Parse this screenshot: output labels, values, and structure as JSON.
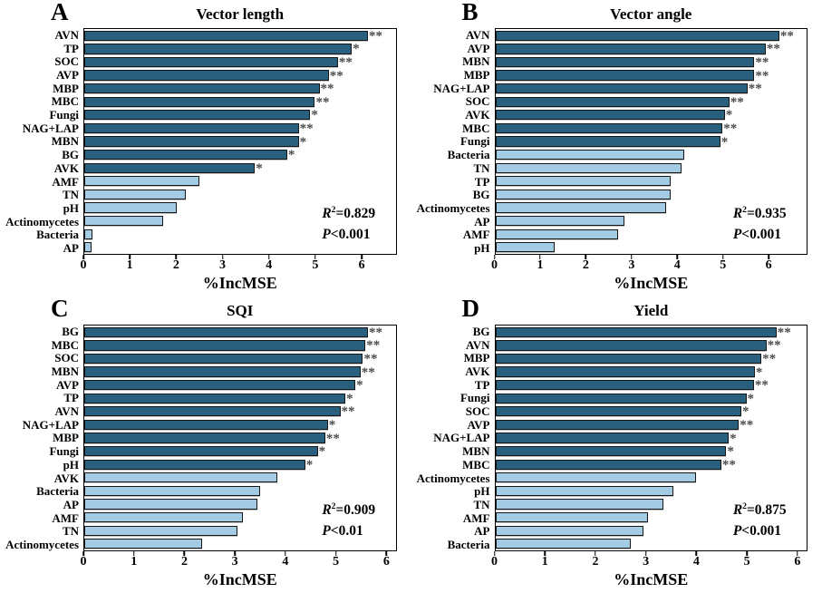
{
  "figure": {
    "background": "#ffffff",
    "colors": {
      "dark_bar": "#28607E",
      "light_bar": "#A3CCE4",
      "bar_border": "#161616",
      "sig_color": "#4A4A4A",
      "text": "#000000"
    }
  },
  "chart_data": [
    {
      "id": "A",
      "type": "bar",
      "orientation": "horizontal",
      "title": "Vector length",
      "xlabel": "%IncMSE",
      "xlim": [
        0,
        6.75
      ],
      "xticks": [
        0,
        1,
        2,
        3,
        4,
        5,
        6
      ],
      "grid": false,
      "stats": {
        "r2": "0.829",
        "p": "<0.001"
      },
      "bars": [
        {
          "label": "AVN",
          "value": 6.15,
          "sig": "**",
          "color": "dark"
        },
        {
          "label": "TP",
          "value": 5.8,
          "sig": "*",
          "color": "dark"
        },
        {
          "label": "SOC",
          "value": 5.5,
          "sig": "**",
          "color": "dark"
        },
        {
          "label": "AVP",
          "value": 5.3,
          "sig": "**",
          "color": "dark"
        },
        {
          "label": "MBP",
          "value": 5.1,
          "sig": "**",
          "color": "dark"
        },
        {
          "label": "MBC",
          "value": 5.0,
          "sig": "**",
          "color": "dark"
        },
        {
          "label": "Fungi",
          "value": 4.9,
          "sig": "*",
          "color": "dark"
        },
        {
          "label": "NAG+LAP",
          "value": 4.65,
          "sig": "**",
          "color": "dark"
        },
        {
          "label": "MBN",
          "value": 4.65,
          "sig": "*",
          "color": "dark"
        },
        {
          "label": "BG",
          "value": 4.4,
          "sig": "*",
          "color": "dark"
        },
        {
          "label": "AVK",
          "value": 3.7,
          "sig": "*",
          "color": "dark"
        },
        {
          "label": "AMF",
          "value": 2.5,
          "sig": "",
          "color": "light"
        },
        {
          "label": "TN",
          "value": 2.2,
          "sig": "",
          "color": "light"
        },
        {
          "label": "pH",
          "value": 2.0,
          "sig": "",
          "color": "light"
        },
        {
          "label": "Actinomycetes",
          "value": 1.7,
          "sig": "",
          "color": "light"
        },
        {
          "label": "Bacteria",
          "value": 0.18,
          "sig": "",
          "color": "light"
        },
        {
          "label": "AP",
          "value": 0.16,
          "sig": "",
          "color": "light"
        }
      ]
    },
    {
      "id": "B",
      "type": "bar",
      "orientation": "horizontal",
      "title": "Vector angle",
      "xlabel": "%IncMSE",
      "xlim": [
        0,
        6.85
      ],
      "xticks": [
        0,
        1,
        2,
        3,
        4,
        5,
        6
      ],
      "grid": false,
      "stats": {
        "r2": "0.935",
        "p": "<0.001"
      },
      "bars": [
        {
          "label": "AVN",
          "value": 6.25,
          "sig": "**",
          "color": "dark"
        },
        {
          "label": "AVP",
          "value": 5.95,
          "sig": "**",
          "color": "dark"
        },
        {
          "label": "MBN",
          "value": 5.7,
          "sig": "**",
          "color": "dark"
        },
        {
          "label": "MBP",
          "value": 5.7,
          "sig": "**",
          "color": "dark"
        },
        {
          "label": "NAG+LAP",
          "value": 5.55,
          "sig": "**",
          "color": "dark"
        },
        {
          "label": "SOC",
          "value": 5.15,
          "sig": "**",
          "color": "dark"
        },
        {
          "label": "AVK",
          "value": 5.05,
          "sig": "*",
          "color": "dark"
        },
        {
          "label": "MBC",
          "value": 5.0,
          "sig": "**",
          "color": "dark"
        },
        {
          "label": "Fungi",
          "value": 4.95,
          "sig": "*",
          "color": "dark"
        },
        {
          "label": "Bacteria",
          "value": 4.15,
          "sig": "",
          "color": "light"
        },
        {
          "label": "TN",
          "value": 4.1,
          "sig": "",
          "color": "light"
        },
        {
          "label": "TP",
          "value": 3.85,
          "sig": "",
          "color": "light"
        },
        {
          "label": "BG",
          "value": 3.85,
          "sig": "",
          "color": "light"
        },
        {
          "label": "Actinomycetes",
          "value": 3.75,
          "sig": "",
          "color": "light"
        },
        {
          "label": "AP",
          "value": 2.85,
          "sig": "",
          "color": "light"
        },
        {
          "label": "AMF",
          "value": 2.7,
          "sig": "",
          "color": "light"
        },
        {
          "label": "pH",
          "value": 1.3,
          "sig": "",
          "color": "light"
        }
      ]
    },
    {
      "id": "C",
      "type": "bar",
      "orientation": "horizontal",
      "title": "SQI",
      "xlabel": "%IncMSE",
      "xlim": [
        0,
        6.2
      ],
      "xticks": [
        0,
        1,
        2,
        3,
        4,
        5,
        6
      ],
      "grid": false,
      "stats": {
        "r2": "0.909",
        "p": "<0.01"
      },
      "bars": [
        {
          "label": "BG",
          "value": 5.65,
          "sig": "**",
          "color": "dark"
        },
        {
          "label": "MBC",
          "value": 5.6,
          "sig": "**",
          "color": "dark"
        },
        {
          "label": "SOC",
          "value": 5.55,
          "sig": "**",
          "color": "dark"
        },
        {
          "label": "MBN",
          "value": 5.5,
          "sig": "**",
          "color": "dark"
        },
        {
          "label": "AVP",
          "value": 5.4,
          "sig": "*",
          "color": "dark"
        },
        {
          "label": "TP",
          "value": 5.2,
          "sig": "*",
          "color": "dark"
        },
        {
          "label": "AVN",
          "value": 5.1,
          "sig": "**",
          "color": "dark"
        },
        {
          "label": "NAG+LAP",
          "value": 4.85,
          "sig": "*",
          "color": "dark"
        },
        {
          "label": "MBP",
          "value": 4.8,
          "sig": "**",
          "color": "dark"
        },
        {
          "label": "Fungi",
          "value": 4.65,
          "sig": "*",
          "color": "dark"
        },
        {
          "label": "pH",
          "value": 4.4,
          "sig": "*",
          "color": "dark"
        },
        {
          "label": "AVK",
          "value": 3.85,
          "sig": "",
          "color": "light"
        },
        {
          "label": "Bacteria",
          "value": 3.5,
          "sig": "",
          "color": "light"
        },
        {
          "label": "AP",
          "value": 3.45,
          "sig": "",
          "color": "light"
        },
        {
          "label": "AMF",
          "value": 3.15,
          "sig": "",
          "color": "light"
        },
        {
          "label": "TN",
          "value": 3.05,
          "sig": "",
          "color": "light"
        },
        {
          "label": "Actinomycetes",
          "value": 2.35,
          "sig": "",
          "color": "light"
        }
      ]
    },
    {
      "id": "D",
      "type": "bar",
      "orientation": "horizontal",
      "title": "Yield",
      "xlabel": "%IncMSE",
      "xlim": [
        0,
        6.2
      ],
      "xticks": [
        0,
        1,
        2,
        3,
        4,
        5,
        6
      ],
      "grid": false,
      "stats": {
        "r2": "0.875",
        "p": "<0.001"
      },
      "bars": [
        {
          "label": "BG",
          "value": 5.6,
          "sig": "**",
          "color": "dark"
        },
        {
          "label": "AVN",
          "value": 5.4,
          "sig": "**",
          "color": "dark"
        },
        {
          "label": "MBP",
          "value": 5.3,
          "sig": "**",
          "color": "dark"
        },
        {
          "label": "AVK",
          "value": 5.17,
          "sig": "*",
          "color": "dark"
        },
        {
          "label": "TP",
          "value": 5.15,
          "sig": "**",
          "color": "dark"
        },
        {
          "label": "Fungi",
          "value": 5.0,
          "sig": "*",
          "color": "dark"
        },
        {
          "label": "SOC",
          "value": 4.9,
          "sig": "*",
          "color": "dark"
        },
        {
          "label": "AVP",
          "value": 4.85,
          "sig": "**",
          "color": "dark"
        },
        {
          "label": "NAG+LAP",
          "value": 4.65,
          "sig": "*",
          "color": "dark"
        },
        {
          "label": "MBN",
          "value": 4.6,
          "sig": "*",
          "color": "dark"
        },
        {
          "label": "MBC",
          "value": 4.5,
          "sig": "**",
          "color": "dark"
        },
        {
          "label": "Actinomycetes",
          "value": 4.0,
          "sig": "",
          "color": "light"
        },
        {
          "label": "pH",
          "value": 3.55,
          "sig": "",
          "color": "light"
        },
        {
          "label": "TN",
          "value": 3.35,
          "sig": "",
          "color": "light"
        },
        {
          "label": "AMF",
          "value": 3.05,
          "sig": "",
          "color": "light"
        },
        {
          "label": "AP",
          "value": 2.95,
          "sig": "",
          "color": "light"
        },
        {
          "label": "Bacteria",
          "value": 2.7,
          "sig": "",
          "color": "light"
        }
      ]
    }
  ]
}
